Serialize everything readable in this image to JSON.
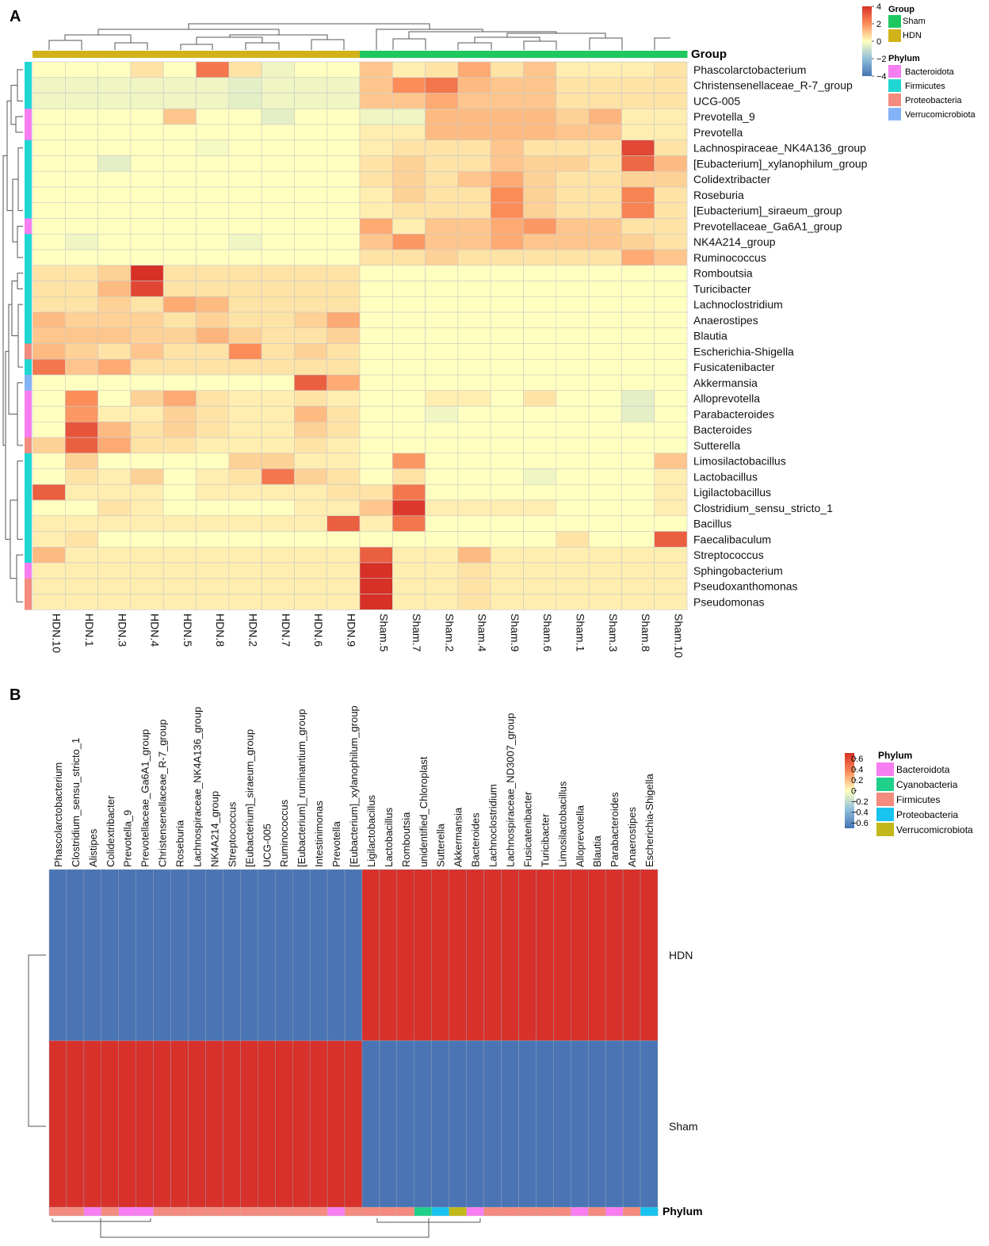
{
  "panels": {
    "a": "A",
    "b": "B"
  },
  "chart_data": [
    {
      "type": "heatmap",
      "panel": "A",
      "rows": [
        "Phascolarctobacterium",
        "Christensenellaceae_R-7_group",
        "UCG-005",
        "Prevotella_9",
        "Prevotella",
        "Lachnospiraceae_NK4A136_group",
        "[Eubacterium]_xylanophilum_group",
        "Colidextribacter",
        "Roseburia",
        "[Eubacterium]_siraeum_group",
        "Prevotellaceae_Ga6A1_group",
        "NK4A214_group",
        "Ruminococcus",
        "Romboutsia",
        "Turicibacter",
        "Lachnoclostridium",
        "Anaerostipes",
        "Blautia",
        "Escherichia-Shigella",
        "Fusicatenibacter",
        "Akkermansia",
        "Alloprevotella",
        "Parabacteroides",
        "Bacteroides",
        "Sutterella",
        "Limosilactobacillus",
        "Lactobacillus",
        "Ligilactobacillus",
        "Clostridium_sensu_stricto_1",
        "Bacillus",
        "Faecalibaculum",
        "Streptococcus",
        "Sphingobacterium",
        "Pseudoxanthomonas",
        "Pseudomonas"
      ],
      "columns": [
        "HDN.10",
        "HDN.1",
        "HDN.3",
        "HDN.4",
        "HDN.5",
        "HDN.8",
        "HDN.2",
        "HDN.7",
        "HDN.6",
        "HDN.9",
        "Sham.5",
        "Sham.7",
        "Sham.2",
        "Sham.4",
        "Sham.9",
        "Sham.6",
        "Sham.1",
        "Sham.3",
        "Sham.8",
        "Sham.10"
      ],
      "column_groups": [
        "HDN",
        "HDN",
        "HDN",
        "HDN",
        "HDN",
        "HDN",
        "HDN",
        "HDN",
        "HDN",
        "HDN",
        "Sham",
        "Sham",
        "Sham",
        "Sham",
        "Sham",
        "Sham",
        "Sham",
        "Sham",
        "Sham",
        "Sham"
      ],
      "row_phylum": [
        "Firmicutes",
        "Firmicutes",
        "Firmicutes",
        "Bacteroidota",
        "Bacteroidota",
        "Firmicutes",
        "Firmicutes",
        "Firmicutes",
        "Firmicutes",
        "Firmicutes",
        "Bacteroidota",
        "Firmicutes",
        "Firmicutes",
        "Firmicutes",
        "Firmicutes",
        "Firmicutes",
        "Firmicutes",
        "Firmicutes",
        "Proteobacteria",
        "Firmicutes",
        "Verrucomicrobiota",
        "Bacteroidota",
        "Bacteroidota",
        "Bacteroidota",
        "Proteobacteria",
        "Firmicutes",
        "Firmicutes",
        "Firmicutes",
        "Firmicutes",
        "Firmicutes",
        "Firmicutes",
        "Firmicutes",
        "Bacteroidota",
        "Proteobacteria",
        "Proteobacteria"
      ],
      "values": [
        [
          0,
          0,
          0,
          0.5,
          0,
          2.5,
          0.5,
          -0.3,
          0,
          0,
          1,
          0.3,
          0.5,
          1.5,
          0.5,
          1,
          0.3,
          0.3,
          0.3,
          0.5
        ],
        [
          -0.3,
          -0.3,
          -0.3,
          -0.3,
          -0.3,
          -0.3,
          -0.5,
          -0.3,
          -0.3,
          -0.3,
          1,
          2,
          2.5,
          1.2,
          1,
          1,
          0.5,
          0.5,
          0.5,
          0.5
        ],
        [
          -0.3,
          -0.3,
          -0.3,
          -0.3,
          -0.3,
          -0.3,
          -0.5,
          -0.3,
          -0.3,
          -0.3,
          1,
          1,
          1.5,
          1,
          1,
          1,
          0.5,
          0.5,
          0.5,
          0.5
        ],
        [
          0,
          0,
          0,
          0,
          1,
          0,
          0,
          -0.5,
          0,
          0,
          -0.3,
          -0.3,
          1.2,
          1.2,
          1.2,
          1.2,
          0.8,
          1.3,
          0.3,
          0.3
        ],
        [
          0,
          0,
          0,
          0,
          0,
          0,
          0,
          0,
          0,
          0,
          0.3,
          0.3,
          1.2,
          1.2,
          1.2,
          1.2,
          1,
          1,
          0.3,
          0.3
        ],
        [
          0,
          0,
          0,
          0,
          0,
          -0.2,
          0,
          0,
          0,
          0,
          0.3,
          0.5,
          0.5,
          0.5,
          1,
          0.5,
          0.5,
          0.5,
          3.5,
          0.5
        ],
        [
          0,
          0,
          -0.5,
          0,
          0,
          0,
          0,
          0,
          0,
          0,
          0.5,
          0.8,
          0.5,
          0.5,
          1,
          0.8,
          0.8,
          0.5,
          2.8,
          1.2
        ],
        [
          0,
          0,
          0,
          0,
          0,
          0,
          0,
          0,
          0,
          0,
          0.5,
          0.8,
          0.5,
          1,
          1.5,
          0.8,
          0.5,
          0.5,
          0.8,
          0.8
        ],
        [
          0,
          0,
          0,
          0,
          0,
          0,
          0,
          0,
          0,
          0,
          0.3,
          0.8,
          0.5,
          0.5,
          2,
          0.8,
          0.5,
          0.5,
          2.2,
          0.5
        ],
        [
          0,
          0,
          0,
          0,
          0,
          0,
          0,
          0,
          0,
          0,
          0.3,
          0.5,
          0.5,
          0.5,
          2,
          0.8,
          0.5,
          0.5,
          2.2,
          0.5
        ],
        [
          0,
          0,
          0,
          0,
          0,
          0,
          0,
          0,
          0,
          0,
          1.5,
          0.3,
          1,
          1,
          1.5,
          1.8,
          1,
          1,
          0.5,
          0.5
        ],
        [
          0,
          -0.3,
          0,
          0,
          0,
          0,
          -0.3,
          0,
          0,
          0,
          1,
          1.8,
          1,
          1,
          1.5,
          1,
          1,
          1,
          0.8,
          0.5
        ],
        [
          0,
          0,
          0,
          0,
          0,
          0,
          0,
          0,
          0,
          0,
          0.5,
          0.5,
          0.8,
          0.5,
          0.5,
          0.5,
          0.5,
          0.5,
          1.5,
          1
        ],
        [
          0.5,
          0.5,
          0.8,
          4,
          0.5,
          0.5,
          0.5,
          0.5,
          0.5,
          0.5,
          0,
          0,
          0,
          0,
          0,
          0,
          0,
          0,
          0,
          0
        ],
        [
          0.5,
          0.5,
          1.2,
          3.5,
          0.5,
          0.5,
          0.5,
          0.5,
          0.5,
          0.5,
          0,
          0,
          0,
          0,
          0,
          0,
          0,
          0,
          0,
          0
        ],
        [
          0.5,
          0.5,
          0.8,
          0.5,
          1.5,
          1.2,
          0.5,
          0.5,
          0.5,
          0.5,
          0,
          0,
          0,
          0,
          0,
          0,
          0,
          0,
          0,
          0
        ],
        [
          1.2,
          0.8,
          0.8,
          0.8,
          0.5,
          0.8,
          0.5,
          0.5,
          0.8,
          1.5,
          0,
          0,
          0,
          0,
          0,
          0,
          0,
          0,
          0,
          0
        ],
        [
          1,
          1,
          1,
          0.8,
          0.8,
          1.3,
          0.8,
          0.5,
          0.5,
          0.8,
          0,
          0,
          0,
          0,
          0,
          0,
          0,
          0,
          0,
          0
        ],
        [
          1.2,
          0.8,
          0.5,
          1,
          0.5,
          0.5,
          2,
          0.5,
          0.8,
          0.5,
          0,
          0,
          0,
          0,
          0,
          0,
          0,
          0,
          0,
          0
        ],
        [
          2.5,
          1,
          1.5,
          0.5,
          0.5,
          0.5,
          0.5,
          0.5,
          0.5,
          0.5,
          0,
          0,
          0,
          0,
          0,
          0,
          0,
          0,
          0,
          0
        ],
        [
          0,
          0,
          0,
          0,
          0,
          0,
          0,
          0,
          3,
          1.5,
          0,
          0,
          0,
          0,
          0,
          0,
          0,
          0,
          0,
          0
        ],
        [
          0,
          2,
          0,
          0.8,
          1.5,
          0.5,
          0.3,
          0.3,
          0.5,
          0.3,
          0,
          0,
          0.3,
          0.3,
          0,
          0.5,
          0,
          0,
          -0.5,
          0
        ],
        [
          0,
          1.8,
          0.3,
          0.3,
          0.8,
          0.5,
          0.3,
          0.3,
          1.2,
          0.5,
          0,
          0,
          -0.3,
          0,
          0,
          0,
          0,
          0,
          -0.5,
          0
        ],
        [
          0,
          3.2,
          1.2,
          0.5,
          0.8,
          0.5,
          0.3,
          0.3,
          0.8,
          0.5,
          0,
          0,
          0,
          0,
          0,
          0,
          0,
          0,
          0,
          0
        ],
        [
          0.8,
          3,
          1.5,
          0.5,
          0.5,
          0.3,
          0.3,
          0.3,
          0.5,
          0.3,
          0,
          0,
          0,
          0,
          0,
          0,
          0,
          0,
          0,
          0
        ],
        [
          0,
          0.8,
          0,
          0,
          0,
          0,
          0.8,
          0.8,
          0.3,
          0.3,
          0,
          1.8,
          0,
          0,
          0,
          0,
          0,
          0,
          0,
          1
        ],
        [
          0,
          0.5,
          0.3,
          0.8,
          0,
          0.3,
          0.5,
          2.5,
          0.8,
          0.5,
          0,
          0.5,
          0,
          0,
          0,
          -0.3,
          0,
          0,
          0,
          0.3
        ],
        [
          3,
          0.3,
          0.3,
          0.3,
          0,
          0.3,
          0.3,
          0.3,
          0.3,
          0.5,
          0.5,
          2.5,
          0,
          0,
          0,
          0,
          0,
          0,
          0,
          0.3
        ],
        [
          0,
          0,
          0.5,
          0.3,
          0,
          0,
          0,
          0,
          0.3,
          0.3,
          1,
          3.8,
          0.3,
          0.3,
          0.3,
          0.3,
          0,
          0,
          0,
          0.3
        ],
        [
          0.3,
          0.3,
          0.3,
          0.3,
          0.3,
          0.3,
          0.3,
          0.3,
          0.3,
          3,
          0.3,
          2.5,
          0,
          0,
          0,
          0,
          0,
          0,
          0,
          0
        ],
        [
          0.3,
          0.5,
          0,
          0,
          0,
          0,
          0,
          0,
          0,
          0,
          0,
          0,
          0,
          0,
          0,
          0,
          0.5,
          0,
          0,
          3
        ],
        [
          1.2,
          0.3,
          0.3,
          0.3,
          0.3,
          0.3,
          0.3,
          0.3,
          0.3,
          0.3,
          3,
          0.3,
          0.3,
          1.2,
          0.3,
          0.3,
          0.3,
          0.3,
          0.3,
          0.3
        ],
        [
          0.3,
          0.3,
          0.3,
          0.3,
          0.3,
          0.3,
          0.3,
          0.3,
          0.3,
          0.3,
          4,
          0.3,
          0.3,
          0.5,
          0.3,
          0.3,
          0.3,
          0.3,
          0.3,
          0.3
        ],
        [
          0.3,
          0.3,
          0.3,
          0.3,
          0.3,
          0.3,
          0.3,
          0.3,
          0.3,
          0.3,
          4,
          0.3,
          0.3,
          0.5,
          0.3,
          0.3,
          0.3,
          0.3,
          0.3,
          0.3
        ],
        [
          0.3,
          0.3,
          0.3,
          0.3,
          0.3,
          0.3,
          0.3,
          0.3,
          0.3,
          0.3,
          4,
          0.3,
          0.3,
          0.5,
          0.3,
          0.3,
          0.3,
          0.3,
          0.3,
          0.3
        ]
      ],
      "scale": {
        "min": -4,
        "max": 4,
        "ticks": [
          "4",
          "2",
          "0",
          "−2",
          "−4"
        ],
        "tick_values": [
          4,
          2,
          0,
          -2,
          -4
        ]
      },
      "group_annotation_label": "Group",
      "legend": {
        "group_title": "Group",
        "groups": [
          {
            "name": "Sham",
            "color": "#1ec760"
          },
          {
            "name": "HDN",
            "color": "#d1b21a"
          }
        ],
        "phylum_title": "Phylum",
        "phyla": [
          {
            "name": "Bacteroidota",
            "color": "#f77ef0"
          },
          {
            "name": "Firmicutes",
            "color": "#20d6d3"
          },
          {
            "name": "Proteobacteria",
            "color": "#f38b7e"
          },
          {
            "name": "Verrucomicrobiota",
            "color": "#84b2f7"
          }
        ]
      }
    },
    {
      "type": "heatmap",
      "panel": "B",
      "columns": [
        "Phascolarctobacterium",
        "Clostridium_sensu_stricto_1",
        "Alistipes",
        "Colidextribacter",
        "Prevotella_9",
        "Prevotellaceae_Ga6A1_group",
        "Christensenellaceae_R-7_group",
        "Roseburia",
        "Lachnospiraceae_NK4A136_group",
        "NK4A214_group",
        "Streptococcus",
        "[Eubacterium]_siraeum_group",
        "UCG-005",
        "Ruminococcus",
        "[Eubacterium]_ruminantium_group",
        "Intestinimonas",
        "Prevotella",
        "[Eubacterium]_xylanophilum_group",
        "Ligilactobacillus",
        "Lactobacillus",
        "Romboutsia",
        "unidentified_Chloroplast",
        "Sutterella",
        "Akkermansia",
        "Bacteroides",
        "Lachnoclostridium",
        "Lachnospiraceae_ND3007_group",
        "Fusicatenibacter",
        "Turicibacter",
        "Limosilactobacillus",
        "Alloprevotella",
        "Blautia",
        "Parabacteroides",
        "Anaerostipes",
        "Escherichia-Shigella"
      ],
      "column_phylum": [
        "Firmicutes",
        "Firmicutes",
        "Bacteroidota",
        "Firmicutes",
        "Bacteroidota",
        "Bacteroidota",
        "Firmicutes",
        "Firmicutes",
        "Firmicutes",
        "Firmicutes",
        "Firmicutes",
        "Firmicutes",
        "Firmicutes",
        "Firmicutes",
        "Firmicutes",
        "Firmicutes",
        "Bacteroidota",
        "Firmicutes",
        "Firmicutes",
        "Firmicutes",
        "Firmicutes",
        "Cyanobacteria",
        "Proteobacteria",
        "Verrucomicrobiota",
        "Bacteroidota",
        "Firmicutes",
        "Firmicutes",
        "Firmicutes",
        "Firmicutes",
        "Firmicutes",
        "Bacteroidota",
        "Firmicutes",
        "Bacteroidota",
        "Firmicutes",
        "Proteobacteria"
      ],
      "rows": [
        "HDN",
        "Sham"
      ],
      "values": [
        [
          -0.6,
          -0.6,
          -0.6,
          -0.6,
          -0.6,
          -0.6,
          -0.6,
          -0.6,
          -0.6,
          -0.6,
          -0.6,
          -0.6,
          -0.6,
          -0.6,
          -0.6,
          -0.6,
          -0.6,
          -0.6,
          0.6,
          0.6,
          0.6,
          0.6,
          0.6,
          0.6,
          0.6,
          0.6,
          0.6,
          0.6,
          0.6,
          0.6,
          0.6,
          0.6,
          0.6,
          0.6,
          0.6
        ],
        [
          0.6,
          0.6,
          0.6,
          0.6,
          0.6,
          0.6,
          0.6,
          0.6,
          0.6,
          0.6,
          0.6,
          0.6,
          0.6,
          0.6,
          0.6,
          0.6,
          0.6,
          0.6,
          -0.6,
          -0.6,
          -0.6,
          -0.6,
          -0.6,
          -0.6,
          -0.6,
          -0.6,
          -0.6,
          -0.6,
          -0.6,
          -0.6,
          -0.6,
          -0.6,
          -0.6,
          -0.6,
          -0.6
        ]
      ],
      "scale": {
        "min": -0.7,
        "max": 0.7,
        "ticks": [
          "0.6",
          "0.4",
          "0.2",
          "0",
          "−0.2",
          "−0.4",
          "−0.6"
        ],
        "tick_values": [
          0.6,
          0.4,
          0.2,
          0,
          -0.2,
          -0.4,
          -0.6
        ]
      },
      "phylum_annotation_label": "Phylum",
      "legend": {
        "phylum_title": "Phylum",
        "phyla": [
          {
            "name": "Bacteroidota",
            "color": "#f77ef0"
          },
          {
            "name": "Cyanobacteria",
            "color": "#1fcf8a"
          },
          {
            "name": "Firmicutes",
            "color": "#f38b7e"
          },
          {
            "name": "Proteobacteria",
            "color": "#19c3ef"
          },
          {
            "name": "Verrucomicrobiota",
            "color": "#c2b81a"
          }
        ]
      }
    }
  ]
}
